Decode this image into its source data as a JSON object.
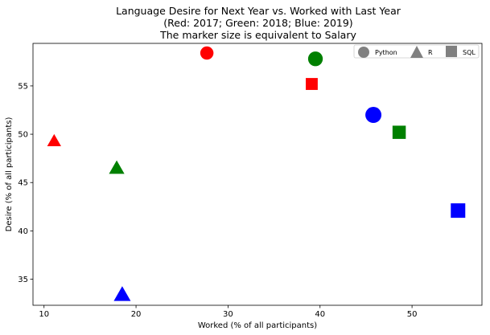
{
  "chart_data": {
    "type": "scatter",
    "title_lines": [
      "Language Desire for Next Year vs. Worked with Last Year",
      "(Red: 2017; Green: 2018; Blue: 2019)",
      "The marker size is equivalent to Salary"
    ],
    "xlabel": "Worked (% of all participants)",
    "ylabel": "Desire (% of all participants)",
    "xlim": [
      8.8,
      57.6
    ],
    "ylim": [
      32.3,
      59.4
    ],
    "xticks": [
      10,
      20,
      30,
      40,
      50
    ],
    "yticks": [
      35,
      40,
      45,
      50,
      55
    ],
    "grid": false,
    "legend_position": "top-right",
    "legend": [
      {
        "label": "Python",
        "marker": "circle",
        "color": "#808080"
      },
      {
        "label": "R",
        "marker": "triangle",
        "color": "#808080"
      },
      {
        "label": "SQL",
        "marker": "square",
        "color": "#808080"
      }
    ],
    "colors": {
      "2017": "#ff0000",
      "2018": "#008000",
      "2019": "#0000ff"
    },
    "points": [
      {
        "language": "Python",
        "year": 2017,
        "color": "#ff0000",
        "marker": "circle",
        "x": 27.7,
        "y": 58.4,
        "salary_size": 0.45
      },
      {
        "language": "R",
        "year": 2017,
        "color": "#ff0000",
        "marker": "triangle",
        "x": 11.1,
        "y": 49.3,
        "salary_size": 0.45
      },
      {
        "language": "SQL",
        "year": 2017,
        "color": "#ff0000",
        "marker": "square",
        "x": 39.1,
        "y": 55.2,
        "salary_size": 0.45
      },
      {
        "language": "Python",
        "year": 2018,
        "color": "#008000",
        "marker": "circle",
        "x": 39.5,
        "y": 57.8,
        "salary_size": 0.63
      },
      {
        "language": "R",
        "year": 2018,
        "color": "#008000",
        "marker": "triangle",
        "x": 17.9,
        "y": 46.5,
        "salary_size": 0.63
      },
      {
        "language": "SQL",
        "year": 2018,
        "color": "#008000",
        "marker": "square",
        "x": 48.6,
        "y": 50.2,
        "salary_size": 0.63
      },
      {
        "language": "Python",
        "year": 2019,
        "color": "#0000ff",
        "marker": "circle",
        "x": 45.8,
        "y": 52.0,
        "salary_size": 0.8
      },
      {
        "language": "R",
        "year": 2019,
        "color": "#0000ff",
        "marker": "triangle",
        "x": 18.5,
        "y": 33.4,
        "salary_size": 0.8
      },
      {
        "language": "SQL",
        "year": 2019,
        "color": "#0000ff",
        "marker": "square",
        "x": 55.0,
        "y": 42.1,
        "salary_size": 0.8
      }
    ]
  }
}
